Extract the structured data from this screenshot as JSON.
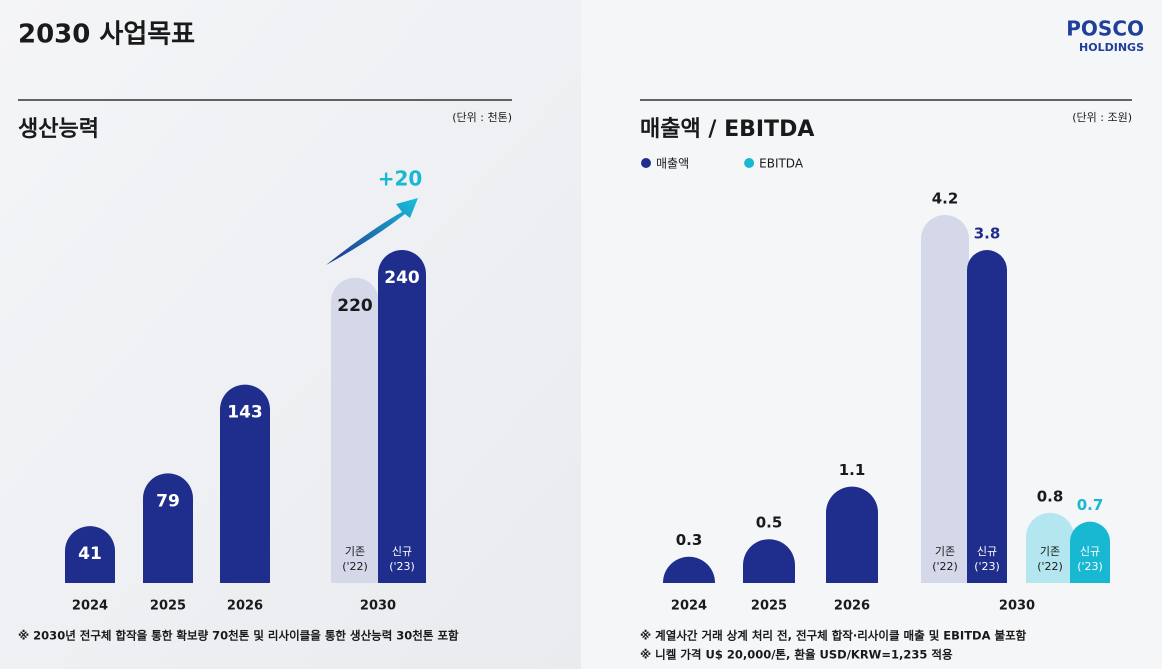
{
  "header": {
    "title": "2030 사업목표",
    "logo": "POSCO",
    "logo_sub": "HOLDINGS"
  },
  "chart_data": [
    {
      "type": "bar",
      "title": "생산능력",
      "unit": "(단위 : 천톤)",
      "label_position": "inside",
      "categories": [
        "2024",
        "2025",
        "2026",
        "2030"
      ],
      "series": [
        {
          "color": "#1f2e8c",
          "values": [
            41,
            79,
            143,
            240
          ],
          "baseline": 220,
          "baseline_color": "#d4d8e8"
        }
      ],
      "old_tag": [
        "기존",
        "('22)"
      ],
      "new_tag": [
        "신규",
        "('23)"
      ],
      "annotation": "+20",
      "notes": [
        "※ 2030년 전구체 합작을 통한 확보량 70천톤 및 리사이클을 통한 생산능력 30천톤 포함"
      ]
    },
    {
      "type": "bar",
      "title": "매출액 / EBITDA",
      "unit": "(단위 : 조원)",
      "label_position": "above",
      "legend": true,
      "categories": [
        "2024",
        "2025",
        "2026",
        "2030"
      ],
      "series": [
        {
          "name": "매출액",
          "color": "#1f2e8c",
          "values": [
            0.3,
            0.5,
            1.1,
            3.8
          ],
          "baseline": 4.2,
          "baseline_color": "#d4d8e8"
        },
        {
          "name": "EBITDA",
          "color": "#19b8d2",
          "values": [
            null,
            null,
            null,
            0.7
          ],
          "baseline": 0.8,
          "baseline_color": "#b3e6ef"
        }
      ],
      "old_tag": [
        "기존",
        "('22)"
      ],
      "new_tag": [
        "신규",
        "('23)"
      ],
      "notes": [
        "※ 계열사간 거래 상계 처리 전, 전구체 합작·리사이클 매출 및 EBITDA 불포함",
        "※ 니켈 가격 U$ 20,000/톤, 환율 USD/KRW=1,235 적용"
      ]
    }
  ]
}
